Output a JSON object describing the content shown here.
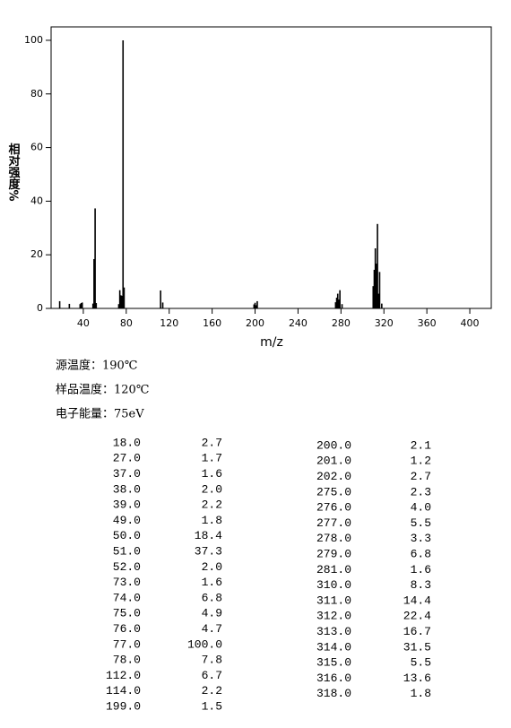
{
  "chart_data": {
    "type": "stem",
    "x_label": "m/z",
    "y_label": "相对强度%",
    "xlim": [
      10,
      420
    ],
    "xticks": [
      40,
      80,
      120,
      160,
      200,
      240,
      280,
      320,
      360,
      400
    ],
    "ylim": [
      0,
      105
    ],
    "yticks": [
      0,
      20,
      40,
      60,
      80,
      100
    ],
    "color": "#000000",
    "x": [
      18,
      27,
      37,
      38,
      39,
      49,
      50,
      51,
      52,
      73,
      74,
      75,
      76,
      77,
      78,
      112,
      114,
      199,
      200,
      201,
      202,
      275,
      276,
      277,
      278,
      279,
      281,
      310,
      311,
      312,
      313,
      314,
      315,
      316,
      318
    ],
    "x_labels": [
      "18.0",
      "27.0",
      "37.0",
      "38.0",
      "39.0",
      "49.0",
      "50.0",
      "51.0",
      "52.0",
      "73.0",
      "74.0",
      "75.0",
      "76.0",
      "77.0",
      "78.0",
      "112.0",
      "114.0",
      "199.0",
      "200.0",
      "201.0",
      "202.0",
      "275.0",
      "276.0",
      "277.0",
      "278.0",
      "279.0",
      "281.0",
      "310.0",
      "311.0",
      "312.0",
      "313.0",
      "314.0",
      "315.0",
      "316.0",
      "318.0"
    ],
    "values": [
      2.7,
      1.7,
      1.6,
      2.0,
      2.2,
      1.8,
      18.4,
      37.3,
      2.0,
      1.6,
      6.8,
      4.9,
      4.7,
      100,
      7.8,
      6.7,
      2.2,
      1.5,
      2.1,
      1.2,
      2.7,
      2.3,
      4.0,
      5.5,
      3.3,
      6.8,
      1.6,
      8.3,
      14.4,
      22.4,
      16.7,
      31.5,
      5.5,
      13.6,
      1.8
    ],
    "value_labels": [
      "2.7",
      "1.7",
      "1.6",
      "2.0",
      "2.2",
      "1.8",
      "18.4",
      "37.3",
      "2.0",
      "1.6",
      "6.8",
      "4.9",
      "4.7",
      "100.0",
      "7.8",
      "6.7",
      "2.2",
      "1.5",
      "2.1",
      "1.2",
      "2.7",
      "2.3",
      "4.0",
      "5.5",
      "3.3",
      "6.8",
      "1.6",
      "8.3",
      "14.4",
      "22.4",
      "16.7",
      "31.5",
      "5.5",
      "13.6",
      "1.8"
    ],
    "notes": [
      "源温度：190℃",
      "样品温度：120℃",
      "电子能量：75eV"
    ],
    "table_split": 18
  }
}
